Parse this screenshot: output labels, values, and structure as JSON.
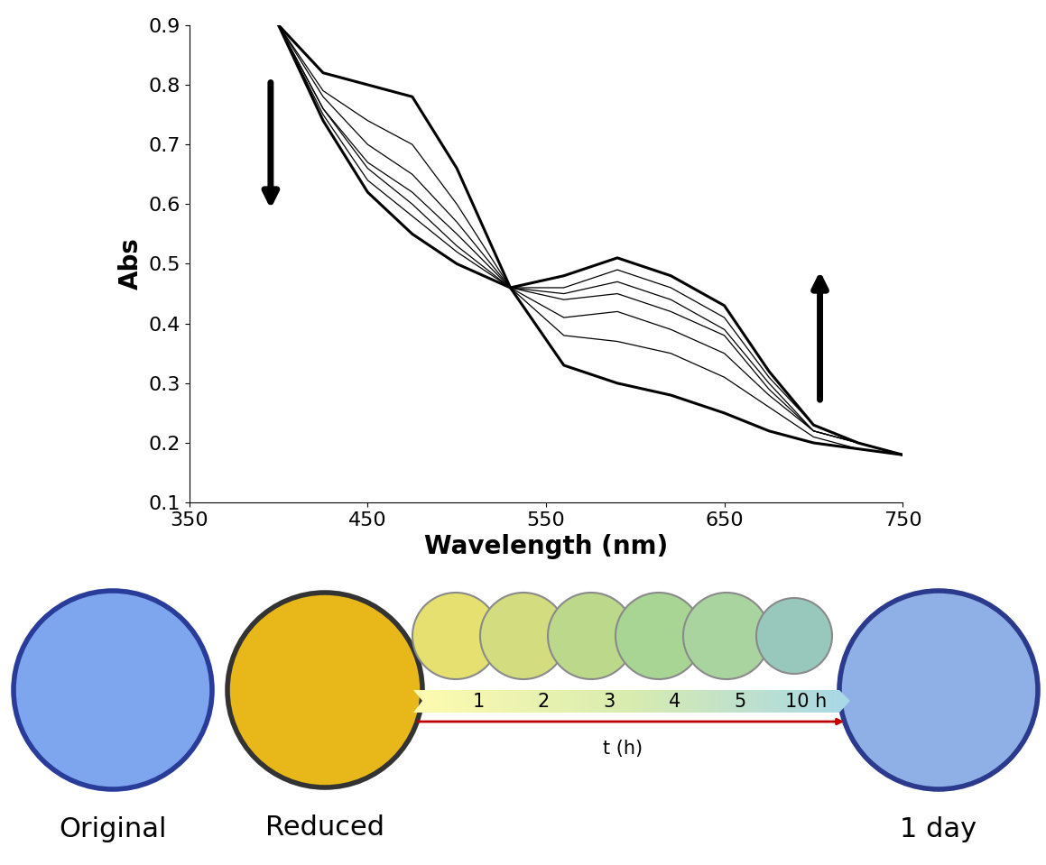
{
  "chart_data": {
    "type": "line",
    "x_label": "Wavelength (nm)",
    "y_label": "Abs",
    "x": [
      400,
      425,
      450,
      475,
      500,
      530,
      560,
      590,
      620,
      650,
      675,
      700,
      725,
      750
    ],
    "series": [
      {
        "color": "#000000",
        "line_style": "solid",
        "values": [
          0.9,
          0.82,
          0.8,
          0.78,
          0.66,
          0.46,
          0.33,
          0.3,
          0.28,
          0.25,
          0.22,
          0.2,
          0.19,
          0.18
        ]
      },
      {
        "color": "#000000",
        "line_style": "solid",
        "values": [
          0.9,
          0.79,
          0.74,
          0.7,
          0.6,
          0.46,
          0.38,
          0.37,
          0.35,
          0.31,
          0.26,
          0.21,
          0.19,
          0.18
        ]
      },
      {
        "color": "#000000",
        "line_style": "solid",
        "values": [
          0.9,
          0.78,
          0.7,
          0.65,
          0.57,
          0.46,
          0.41,
          0.42,
          0.39,
          0.35,
          0.28,
          0.22,
          0.2,
          0.18
        ]
      },
      {
        "color": "#000000",
        "line_style": "solid",
        "values": [
          0.9,
          0.76,
          0.67,
          0.62,
          0.55,
          0.46,
          0.44,
          0.45,
          0.42,
          0.38,
          0.29,
          0.22,
          0.2,
          0.18
        ]
      },
      {
        "color": "#000000",
        "line_style": "solid",
        "values": [
          0.9,
          0.76,
          0.66,
          0.6,
          0.53,
          0.46,
          0.45,
          0.47,
          0.44,
          0.39,
          0.3,
          0.22,
          0.2,
          0.18
        ]
      },
      {
        "color": "#000000",
        "line_style": "solid",
        "values": [
          0.9,
          0.75,
          0.64,
          0.58,
          0.52,
          0.46,
          0.46,
          0.49,
          0.46,
          0.41,
          0.31,
          0.23,
          0.2,
          0.18
        ]
      },
      {
        "color": "#000000",
        "line_style": "solid",
        "values": [
          0.9,
          0.74,
          0.62,
          0.55,
          0.5,
          0.46,
          0.48,
          0.51,
          0.48,
          0.43,
          0.32,
          0.23,
          0.2,
          0.18
        ]
      }
    ],
    "xlim": [
      350,
      750
    ],
    "xticks": [
      350,
      450,
      550,
      650,
      750
    ],
    "ylim": [
      0.1,
      0.9
    ],
    "yticks": [
      0.1,
      0.2,
      0.3,
      0.4,
      0.5,
      0.6,
      0.7,
      0.8,
      0.9
    ],
    "grid": false
  },
  "samples": [
    {
      "label": "Original",
      "color": "#7ea6ee"
    },
    {
      "label": "Reduced",
      "color": "#e8b81a"
    },
    {
      "label": "1 day",
      "color": "#8fb0e6"
    }
  ],
  "timeline": {
    "label": "t (h)",
    "ticks": [
      "1",
      "2",
      "3",
      "4",
      "5",
      "10 h"
    ],
    "colors": [
      "#e6e070",
      "#d4dc80",
      "#bcd88a",
      "#a8d494",
      "#a9d4a0",
      "#98c8bc"
    ]
  }
}
